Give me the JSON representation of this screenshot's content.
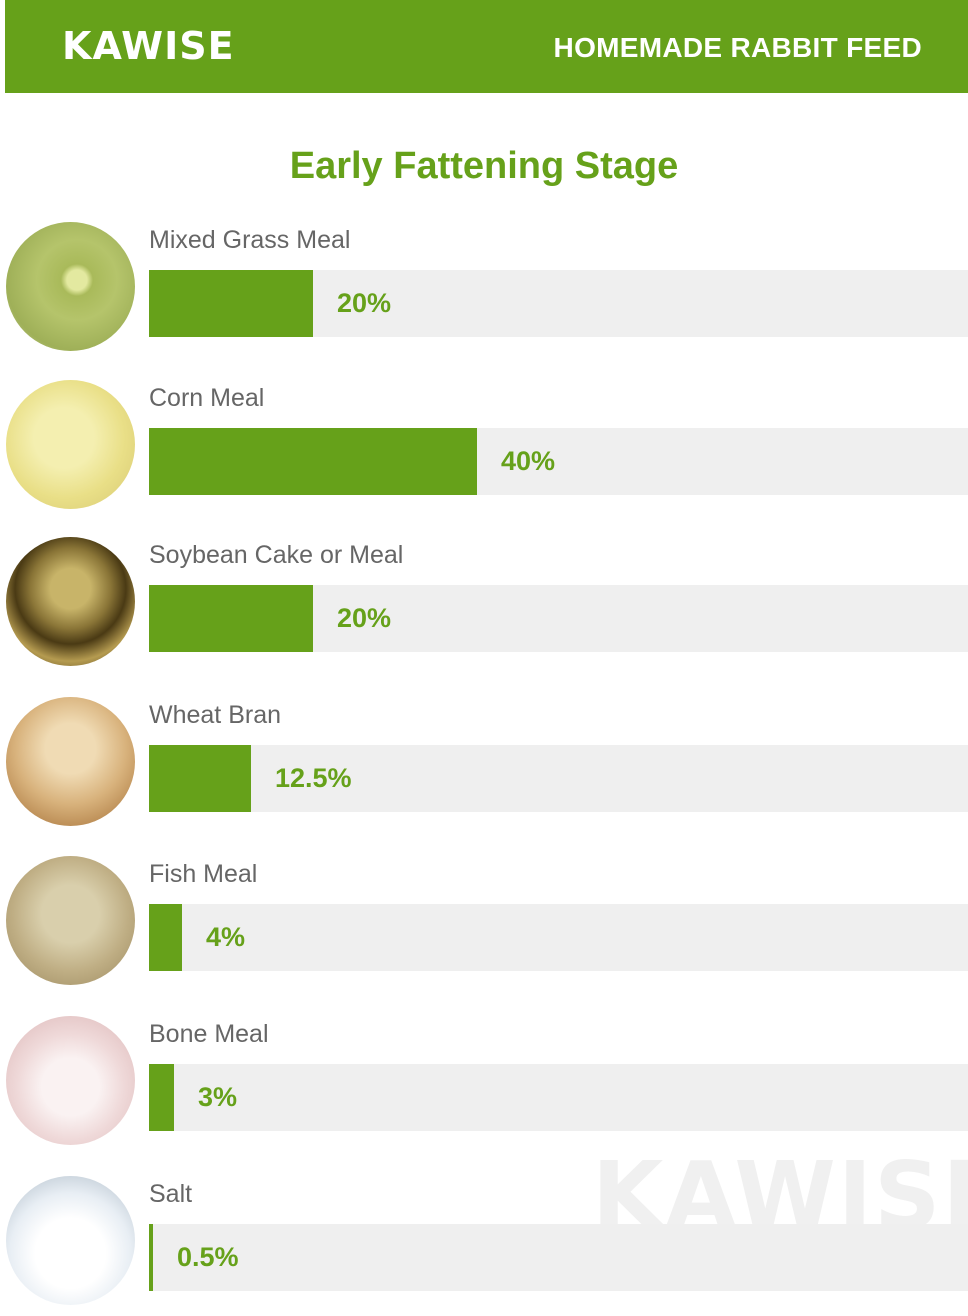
{
  "header": {
    "logo": "KAWISE",
    "title": "HOMEMADE RABBIT FEED"
  },
  "watermark": "KAWISE",
  "chart_data": {
    "type": "bar",
    "title": "Early Fattening Stage",
    "categories": [
      "Mixed Grass Meal",
      "Corn Meal",
      "Soybean Cake or Meal",
      "Wheat Bran",
      "Fish Meal",
      "Bone Meal",
      "Salt"
    ],
    "values": [
      20,
      40,
      20,
      12.5,
      4,
      3,
      0.5
    ],
    "labels": [
      "20%",
      "40%",
      "20%",
      "12.5%",
      "4%",
      "3%",
      "0.5%"
    ],
    "xlim": [
      0,
      100
    ],
    "bar_color": "#66a11a",
    "track_color": "#efefef",
    "thumbnails": [
      "mixed-grass-meal-photo",
      "corn-meal-photo",
      "soybean-cake-photo",
      "wheat-bran-photo",
      "fish-meal-photo",
      "bone-meal-photo",
      "salt-photo"
    ]
  }
}
